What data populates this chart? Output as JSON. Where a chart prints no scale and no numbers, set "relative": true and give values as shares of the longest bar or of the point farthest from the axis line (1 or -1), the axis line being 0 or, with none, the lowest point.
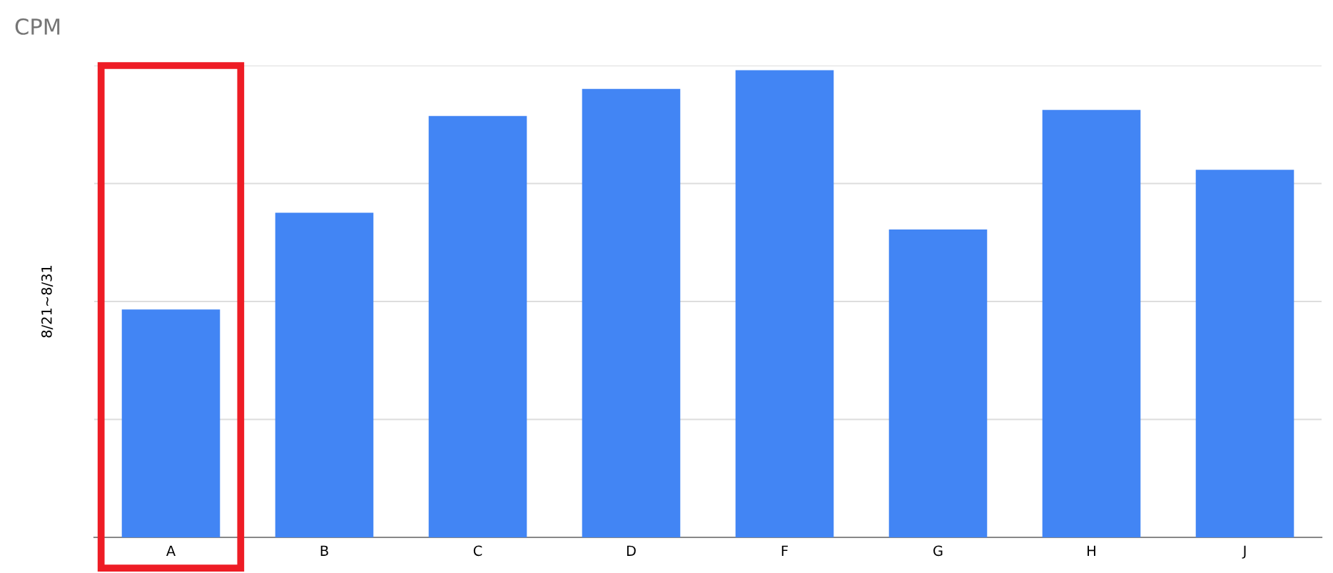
{
  "chart_data": {
    "type": "bar",
    "title": "CPM",
    "ylabel": "8/21~8/31",
    "categories": [
      "A",
      "B",
      "C",
      "D",
      "F",
      "G",
      "H",
      "J"
    ],
    "values": [
      0.488,
      0.695,
      0.902,
      0.96,
      1,
      0.659,
      0.915,
      0.787
    ],
    "color": "#4285f4",
    "relative": true,
    "grid": "y"
  }
}
